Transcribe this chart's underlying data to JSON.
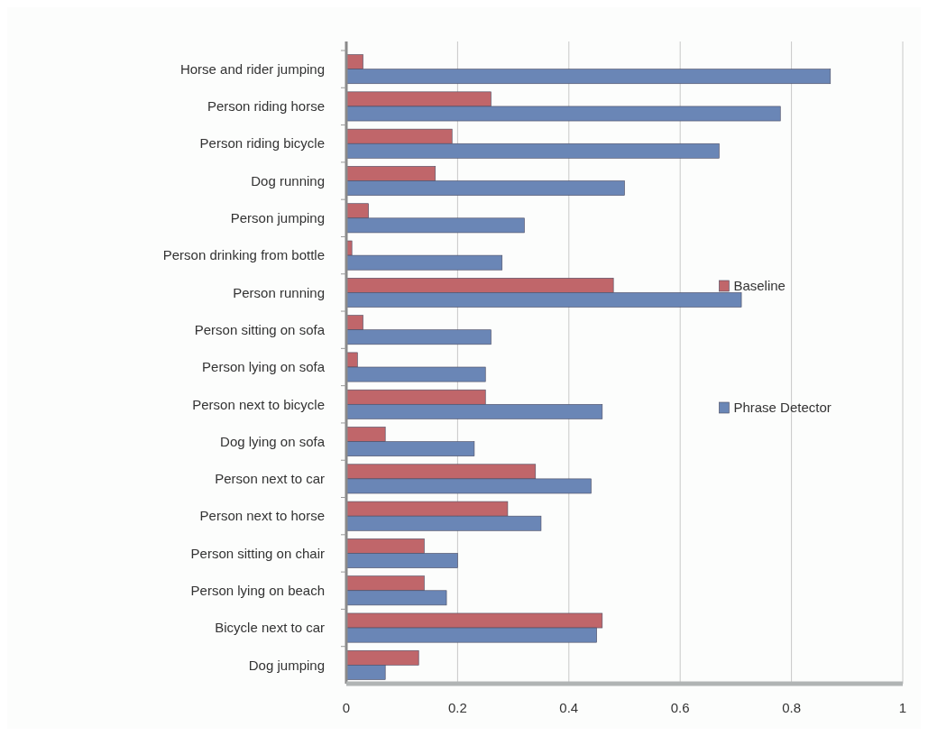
{
  "chart_data": {
    "type": "bar",
    "orientation": "horizontal",
    "categories": [
      "Horse and rider jumping",
      "Person riding horse",
      "Person riding bicycle",
      "Dog running",
      "Person jumping",
      "Person drinking from bottle",
      "Person running",
      "Person sitting on sofa",
      "Person lying on sofa",
      "Person next to bicycle",
      "Dog lying on sofa",
      "Person next to car",
      "Person next to horse",
      "Person sitting on chair",
      "Person lying on beach",
      "Bicycle next to car",
      "Dog jumping"
    ],
    "series": [
      {
        "name": "Baseline",
        "color": "#c0666a",
        "values": [
          0.03,
          0.26,
          0.19,
          0.16,
          0.04,
          0.01,
          0.48,
          0.03,
          0.02,
          0.25,
          0.07,
          0.34,
          0.29,
          0.14,
          0.14,
          0.46,
          0.13
        ]
      },
      {
        "name": "Phrase Detector",
        "color": "#6a86b6",
        "values": [
          0.87,
          0.78,
          0.67,
          0.5,
          0.32,
          0.28,
          0.71,
          0.26,
          0.25,
          0.46,
          0.23,
          0.44,
          0.35,
          0.2,
          0.18,
          0.45,
          0.07
        ]
      }
    ],
    "xlim": [
      0,
      1
    ],
    "xticks": [
      0,
      0.2,
      0.4,
      0.6,
      0.8,
      1
    ],
    "grid": "x",
    "legend": "right"
  }
}
